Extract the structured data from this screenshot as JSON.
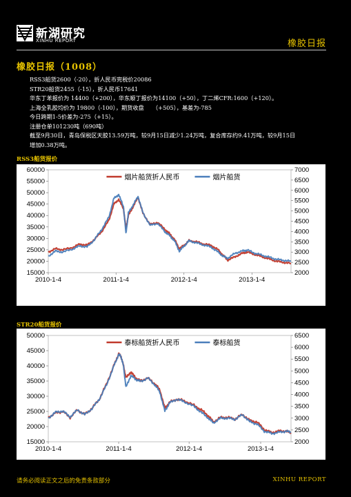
{
  "header": {
    "logo_cn": "新湖研究",
    "logo_en": "XINHU REPORT",
    "report_title": "橡胶日报"
  },
  "section_title": "橡胶日报（1008）",
  "lines": [
    "RSS3船货2600（-20），折人民币完税价20086",
    "STR20船货2455（-15），折人民币17641",
    "华东丁苯报价为 14400（+200），华东顺丁报价为14100（+50），丁二烯CFR:1600（+120）。",
    "上海全乳胶均价为 19800（-100），期货收盘　　（+505），基差为-785",
    "今日跨期1-5价差为-275（+15）。",
    "注册仓单101230吨（690吨）",
    "截至9月30日，青岛保税区天胶13.59万吨，较9月15日减少1.24万吨，复合库存约9.41万吨，较9月15日",
    "增加0.38万吨。"
  ],
  "colors": {
    "accent": "#e6c200",
    "red_series": "#c0392b",
    "blue_series": "#4a7ebb"
  },
  "chart1_label": "RSS3船货报价",
  "chart2_label": "STR20船货报价",
  "chart_data": [
    {
      "type": "line",
      "left_axis": {
        "min": 15000,
        "max": 60000,
        "ticks": [
          "60000",
          "55000",
          "50000",
          "45000",
          "40000",
          "35000",
          "30000",
          "25000",
          "20000",
          "15000"
        ]
      },
      "right_axis": {
        "min": 2000,
        "max": 7000,
        "ticks": [
          "7000",
          "6500",
          "6000",
          "5500",
          "5000",
          "4500",
          "4000",
          "3500",
          "3000",
          "2500",
          "2000"
        ]
      },
      "x_ticks": [
        "2010-1-4",
        "2011-1-4",
        "2012-1-4",
        "2013-1-4"
      ],
      "x_tick_positions": [
        0,
        0.279,
        0.559,
        0.839
      ],
      "series": [
        {
          "name": "烟片船货折人民币",
          "axis": "left",
          "color": "#c0392b",
          "points": [
            [
              0,
              24000
            ],
            [
              0.03,
              25500
            ],
            [
              0.06,
              25000
            ],
            [
              0.1,
              26000
            ],
            [
              0.13,
              27500
            ],
            [
              0.16,
              27000
            ],
            [
              0.19,
              29500
            ],
            [
              0.22,
              33000
            ],
            [
              0.25,
              38000
            ],
            [
              0.27,
              45000
            ],
            [
              0.29,
              47000
            ],
            [
              0.31,
              43000
            ],
            [
              0.32,
              34000
            ],
            [
              0.33,
              40000
            ],
            [
              0.35,
              44000
            ],
            [
              0.37,
              48000
            ],
            [
              0.39,
              41000
            ],
            [
              0.42,
              36000
            ],
            [
              0.45,
              37000
            ],
            [
              0.48,
              34000
            ],
            [
              0.5,
              32000
            ],
            [
              0.52,
              29500
            ],
            [
              0.54,
              25500
            ],
            [
              0.56,
              27000
            ],
            [
              0.58,
              29000
            ],
            [
              0.61,
              28500
            ],
            [
              0.64,
              27500
            ],
            [
              0.67,
              27000
            ],
            [
              0.7,
              25000
            ],
            [
              0.72,
              22500
            ],
            [
              0.74,
              20500
            ],
            [
              0.77,
              22000
            ],
            [
              0.8,
              23500
            ],
            [
              0.82,
              24000
            ],
            [
              0.85,
              23000
            ],
            [
              0.88,
              22000
            ],
            [
              0.91,
              21000
            ],
            [
              0.94,
              20000
            ],
            [
              0.97,
              19500
            ],
            [
              1,
              19000
            ]
          ]
        },
        {
          "name": "烟片船货",
          "axis": "right",
          "color": "#4a7ebb",
          "points": [
            [
              0,
              2800
            ],
            [
              0.03,
              3050
            ],
            [
              0.06,
              3000
            ],
            [
              0.1,
              3150
            ],
            [
              0.13,
              3300
            ],
            [
              0.16,
              3250
            ],
            [
              0.19,
              3600
            ],
            [
              0.22,
              4100
            ],
            [
              0.25,
              4700
            ],
            [
              0.27,
              5600
            ],
            [
              0.29,
              5800
            ],
            [
              0.31,
              5200
            ],
            [
              0.32,
              3900
            ],
            [
              0.33,
              4900
            ],
            [
              0.35,
              5300
            ],
            [
              0.37,
              5700
            ],
            [
              0.39,
              4900
            ],
            [
              0.42,
              4300
            ],
            [
              0.45,
              4400
            ],
            [
              0.48,
              4000
            ],
            [
              0.5,
              3800
            ],
            [
              0.52,
              3550
            ],
            [
              0.54,
              3050
            ],
            [
              0.56,
              3300
            ],
            [
              0.58,
              3550
            ],
            [
              0.61,
              3450
            ],
            [
              0.64,
              3350
            ],
            [
              0.67,
              3250
            ],
            [
              0.7,
              3000
            ],
            [
              0.72,
              2800
            ],
            [
              0.74,
              2700
            ],
            [
              0.77,
              2950
            ],
            [
              0.8,
              3050
            ],
            [
              0.82,
              3100
            ],
            [
              0.85,
              2950
            ],
            [
              0.88,
              2850
            ],
            [
              0.91,
              2750
            ],
            [
              0.94,
              2650
            ],
            [
              0.97,
              2600
            ],
            [
              1,
              2550
            ]
          ]
        }
      ]
    },
    {
      "type": "line",
      "left_axis": {
        "min": 15000,
        "max": 50000,
        "ticks": [
          "50000",
          "45000",
          "40000",
          "35000",
          "30000",
          "25000",
          "20000",
          "15000"
        ]
      },
      "right_axis": {
        "min": 2000,
        "max": 6500,
        "ticks": [
          "6500",
          "6000",
          "5500",
          "5000",
          "4500",
          "4000",
          "3500",
          "3000",
          "2500",
          "2000"
        ]
      },
      "x_ticks": [
        "2010-1-4",
        "2011-1-4",
        "2012-1-4",
        "2013-1-4"
      ],
      "x_tick_positions": [
        0,
        0.29,
        0.58,
        0.875
      ],
      "series": [
        {
          "name": "泰标船货折人民币",
          "axis": "left",
          "color": "#c0392b",
          "points": [
            [
              0,
              23000
            ],
            [
              0.03,
              24500
            ],
            [
              0.06,
              25000
            ],
            [
              0.09,
              23000
            ],
            [
              0.12,
              25500
            ],
            [
              0.15,
              24000
            ],
            [
              0.18,
              26000
            ],
            [
              0.21,
              29000
            ],
            [
              0.24,
              34000
            ],
            [
              0.27,
              40000
            ],
            [
              0.29,
              44000
            ],
            [
              0.3,
              43000
            ],
            [
              0.31,
              40000
            ],
            [
              0.32,
              36000
            ],
            [
              0.34,
              38000
            ],
            [
              0.36,
              36000
            ],
            [
              0.38,
              35000
            ],
            [
              0.41,
              36000
            ],
            [
              0.44,
              34000
            ],
            [
              0.46,
              32000
            ],
            [
              0.48,
              26000
            ],
            [
              0.5,
              28000
            ],
            [
              0.53,
              29000
            ],
            [
              0.56,
              28500
            ],
            [
              0.6,
              27000
            ],
            [
              0.63,
              25500
            ],
            [
              0.66,
              23500
            ],
            [
              0.68,
              21500
            ],
            [
              0.71,
              23000
            ],
            [
              0.74,
              23000
            ],
            [
              0.77,
              22500
            ],
            [
              0.8,
              24000
            ],
            [
              0.83,
              22000
            ],
            [
              0.86,
              21500
            ],
            [
              0.89,
              19000
            ],
            [
              0.92,
              18000
            ],
            [
              0.95,
              18500
            ],
            [
              0.98,
              18500
            ],
            [
              1,
              18000
            ]
          ]
        },
        {
          "name": "泰标船货",
          "axis": "right",
          "color": "#4a7ebb",
          "points": [
            [
              0,
              3000
            ],
            [
              0.03,
              3250
            ],
            [
              0.06,
              3300
            ],
            [
              0.09,
              3050
            ],
            [
              0.12,
              3350
            ],
            [
              0.15,
              3150
            ],
            [
              0.18,
              3400
            ],
            [
              0.21,
              3800
            ],
            [
              0.24,
              4400
            ],
            [
              0.27,
              5200
            ],
            [
              0.29,
              5700
            ],
            [
              0.3,
              5600
            ],
            [
              0.31,
              5200
            ],
            [
              0.32,
              4300
            ],
            [
              0.34,
              4800
            ],
            [
              0.36,
              4650
            ],
            [
              0.38,
              4550
            ],
            [
              0.41,
              4700
            ],
            [
              0.44,
              4400
            ],
            [
              0.46,
              4100
            ],
            [
              0.48,
              3300
            ],
            [
              0.5,
              3650
            ],
            [
              0.53,
              3800
            ],
            [
              0.56,
              3700
            ],
            [
              0.6,
              3500
            ],
            [
              0.63,
              3250
            ],
            [
              0.66,
              3000
            ],
            [
              0.68,
              2800
            ],
            [
              0.71,
              3000
            ],
            [
              0.74,
              3000
            ],
            [
              0.77,
              2950
            ],
            [
              0.8,
              3150
            ],
            [
              0.83,
              2850
            ],
            [
              0.86,
              2750
            ],
            [
              0.89,
              2450
            ],
            [
              0.92,
              2350
            ],
            [
              0.95,
              2400
            ],
            [
              0.98,
              2450
            ],
            [
              1,
              2400
            ]
          ]
        }
      ]
    }
  ],
  "footer": {
    "disclaimer": "请务必阅读正文之后的免责条款部分",
    "brand": "XINHU REPORT"
  }
}
